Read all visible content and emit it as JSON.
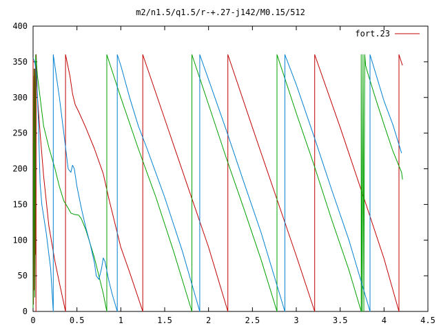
{
  "chart_data": {
    "type": "line",
    "title": "m2/n1.5/q1.5/r-+.27-j142/M0.15/512",
    "xlabel": "",
    "ylabel": "",
    "xlim": [
      0,
      4.5
    ],
    "ylim": [
      0,
      400
    ],
    "x_ticks": [
      0,
      0.5,
      1,
      1.5,
      2,
      2.5,
      3,
      3.5,
      4,
      4.5
    ],
    "x_tick_labels": [
      "0",
      "0.5",
      "1",
      "1.5",
      "2",
      "2.5",
      "3",
      "3.5",
      "4",
      "4.5"
    ],
    "y_ticks": [
      0,
      50,
      100,
      150,
      200,
      250,
      300,
      350,
      400
    ],
    "y_tick_labels": [
      "0",
      "50",
      "100",
      "150",
      "200",
      "250",
      "300",
      "350",
      "400"
    ],
    "grid": false,
    "legend": {
      "position": "top-right",
      "entries": [
        "fort.23"
      ]
    },
    "series": [
      {
        "name": "fort.23",
        "color": "#c00000",
        "points": [
          [
            0.0,
            355
          ],
          [
            0.005,
            10
          ],
          [
            0.01,
            330
          ],
          [
            0.015,
            30
          ],
          [
            0.02,
            340
          ],
          [
            0.025,
            80
          ],
          [
            0.03,
            345
          ],
          [
            0.033,
            0
          ],
          [
            0.035,
            360
          ],
          [
            0.05,
            300
          ],
          [
            0.08,
            250
          ],
          [
            0.12,
            190
          ],
          [
            0.18,
            120
          ],
          [
            0.25,
            70
          ],
          [
            0.3,
            40
          ],
          [
            0.37,
            0
          ],
          [
            0.37,
            360
          ],
          [
            0.42,
            330
          ],
          [
            0.45,
            305
          ],
          [
            0.48,
            290
          ],
          [
            0.52,
            280
          ],
          [
            0.6,
            258
          ],
          [
            0.7,
            228
          ],
          [
            0.8,
            193
          ],
          [
            0.86,
            160
          ],
          [
            1.0,
            90
          ],
          [
            1.1,
            55
          ],
          [
            1.25,
            0
          ],
          [
            1.25,
            360
          ],
          [
            1.5,
            270
          ],
          [
            1.75,
            180
          ],
          [
            2.0,
            90
          ],
          [
            2.22,
            0
          ],
          [
            2.22,
            360
          ],
          [
            2.5,
            258
          ],
          [
            2.8,
            150
          ],
          [
            3.0,
            78
          ],
          [
            3.21,
            0
          ],
          [
            3.21,
            360
          ],
          [
            3.5,
            258
          ],
          [
            3.8,
            148
          ],
          [
            4.0,
            74
          ],
          [
            4.17,
            0
          ],
          [
            4.17,
            360
          ],
          [
            4.21,
            345
          ]
        ]
      },
      {
        "name": "",
        "color": "#00a000",
        "points": [
          [
            0.0,
            5
          ],
          [
            0.01,
            340
          ],
          [
            0.02,
            20
          ],
          [
            0.03,
            360
          ],
          [
            0.05,
            330
          ],
          [
            0.08,
            300
          ],
          [
            0.12,
            260
          ],
          [
            0.18,
            230
          ],
          [
            0.25,
            200
          ],
          [
            0.3,
            175
          ],
          [
            0.35,
            155
          ],
          [
            0.4,
            145
          ],
          [
            0.43,
            138
          ],
          [
            0.47,
            136
          ],
          [
            0.52,
            135
          ],
          [
            0.55,
            130
          ],
          [
            0.6,
            115
          ],
          [
            0.65,
            95
          ],
          [
            0.7,
            75
          ],
          [
            0.75,
            50
          ],
          [
            0.8,
            25
          ],
          [
            0.84,
            0
          ],
          [
            0.84,
            360
          ],
          [
            1.0,
            300
          ],
          [
            1.2,
            228
          ],
          [
            1.4,
            160
          ],
          [
            1.6,
            85
          ],
          [
            1.81,
            0
          ],
          [
            1.81,
            360
          ],
          [
            2.0,
            290
          ],
          [
            2.2,
            216
          ],
          [
            2.4,
            145
          ],
          [
            2.6,
            72
          ],
          [
            2.78,
            0
          ],
          [
            2.78,
            360
          ],
          [
            3.0,
            278
          ],
          [
            3.2,
            206
          ],
          [
            3.4,
            130
          ],
          [
            3.6,
            58
          ],
          [
            3.74,
            0
          ],
          [
            3.74,
            360
          ],
          [
            3.75,
            0
          ],
          [
            3.76,
            360
          ],
          [
            3.77,
            0
          ],
          [
            3.78,
            360
          ],
          [
            3.79,
            345
          ],
          [
            3.8,
            340
          ],
          [
            3.85,
            320
          ],
          [
            3.9,
            300
          ],
          [
            4.0,
            262
          ],
          [
            4.1,
            225
          ],
          [
            4.2,
            195
          ],
          [
            4.21,
            185
          ]
        ]
      },
      {
        "name": "",
        "color": "#0080d0",
        "points": [
          [
            0.0,
            355
          ],
          [
            0.02,
            350
          ],
          [
            0.04,
            330
          ],
          [
            0.06,
            270
          ],
          [
            0.08,
            180
          ],
          [
            0.1,
            150
          ],
          [
            0.15,
            110
          ],
          [
            0.2,
            60
          ],
          [
            0.23,
            0
          ],
          [
            0.23,
            360
          ],
          [
            0.3,
            300
          ],
          [
            0.35,
            250
          ],
          [
            0.4,
            200
          ],
          [
            0.43,
            195
          ],
          [
            0.45,
            205
          ],
          [
            0.47,
            200
          ],
          [
            0.5,
            175
          ],
          [
            0.55,
            145
          ],
          [
            0.6,
            118
          ],
          [
            0.65,
            95
          ],
          [
            0.7,
            68
          ],
          [
            0.72,
            50
          ],
          [
            0.75,
            45
          ],
          [
            0.78,
            60
          ],
          [
            0.8,
            75
          ],
          [
            0.82,
            70
          ],
          [
            0.86,
            45
          ],
          [
            0.9,
            25
          ],
          [
            0.96,
            0
          ],
          [
            0.96,
            360
          ],
          [
            1.0,
            345
          ],
          [
            1.1,
            300
          ],
          [
            1.2,
            260
          ],
          [
            1.3,
            228
          ],
          [
            1.5,
            160
          ],
          [
            1.7,
            85
          ],
          [
            1.9,
            0
          ],
          [
            1.9,
            360
          ],
          [
            2.0,
            325
          ],
          [
            2.2,
            255
          ],
          [
            2.4,
            182
          ],
          [
            2.6,
            110
          ],
          [
            2.87,
            0
          ],
          [
            2.87,
            360
          ],
          [
            3.0,
            318
          ],
          [
            3.2,
            246
          ],
          [
            3.4,
            172
          ],
          [
            3.6,
            100
          ],
          [
            3.84,
            0
          ],
          [
            3.84,
            360
          ],
          [
            4.0,
            295
          ],
          [
            4.1,
            262
          ],
          [
            4.2,
            222
          ]
        ]
      }
    ]
  }
}
